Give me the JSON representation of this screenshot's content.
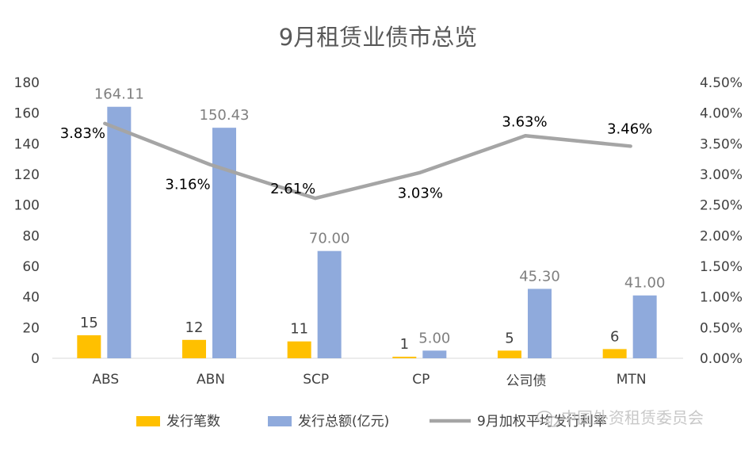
{
  "chart_data": {
    "type": "bar",
    "title": "9月租赁业债市总览",
    "categories": [
      "ABS",
      "ABN",
      "SCP",
      "CP",
      "公司债",
      "MTN"
    ],
    "series": [
      {
        "name": "发行笔数",
        "type": "bar",
        "axis": "left",
        "color": "#FFC000",
        "values": [
          15,
          12,
          11,
          1,
          5,
          6
        ],
        "labels": [
          "15",
          "12",
          "11",
          "1",
          "5",
          "6"
        ]
      },
      {
        "name": "发行总额(亿元)",
        "type": "bar",
        "axis": "left",
        "color": "#8FAADC",
        "values": [
          164.11,
          150.43,
          70.0,
          5.0,
          45.3,
          41.0
        ],
        "labels": [
          "164.11",
          "150.43",
          "70.00",
          "5.00",
          "45.30",
          "41.00"
        ]
      },
      {
        "name": "9月加权平均发行利率",
        "type": "line",
        "axis": "right",
        "color": "#A5A5A5",
        "values": [
          3.83,
          3.16,
          2.61,
          3.03,
          3.63,
          3.46
        ],
        "labels": [
          "3.83%",
          "3.16%",
          "2.61%",
          "3.03%",
          "3.63%",
          "3.46%"
        ]
      }
    ],
    "y_left": {
      "min": 0,
      "max": 180,
      "ticks": [
        "0",
        "20",
        "40",
        "60",
        "80",
        "100",
        "120",
        "140",
        "160",
        "180"
      ]
    },
    "y_right": {
      "min": 0,
      "max": 4.5,
      "ticks": [
        "0.00%",
        "0.50%",
        "1.00%",
        "1.50%",
        "2.00%",
        "2.50%",
        "3.00%",
        "3.50%",
        "4.00%",
        "4.50%"
      ]
    },
    "grid": false,
    "legend": "bottom"
  },
  "legend": {
    "items": [
      {
        "label": "发行笔数",
        "kind": "box",
        "color": "#FFC000"
      },
      {
        "label": "发行总额(亿元)",
        "kind": "box",
        "color": "#8FAADC"
      },
      {
        "label": "9月加权平均发行利率",
        "kind": "line",
        "color": "#A5A5A5"
      }
    ]
  },
  "watermark": {
    "text": "中国外资租赁委员会",
    "icon": "wechat-icon"
  }
}
